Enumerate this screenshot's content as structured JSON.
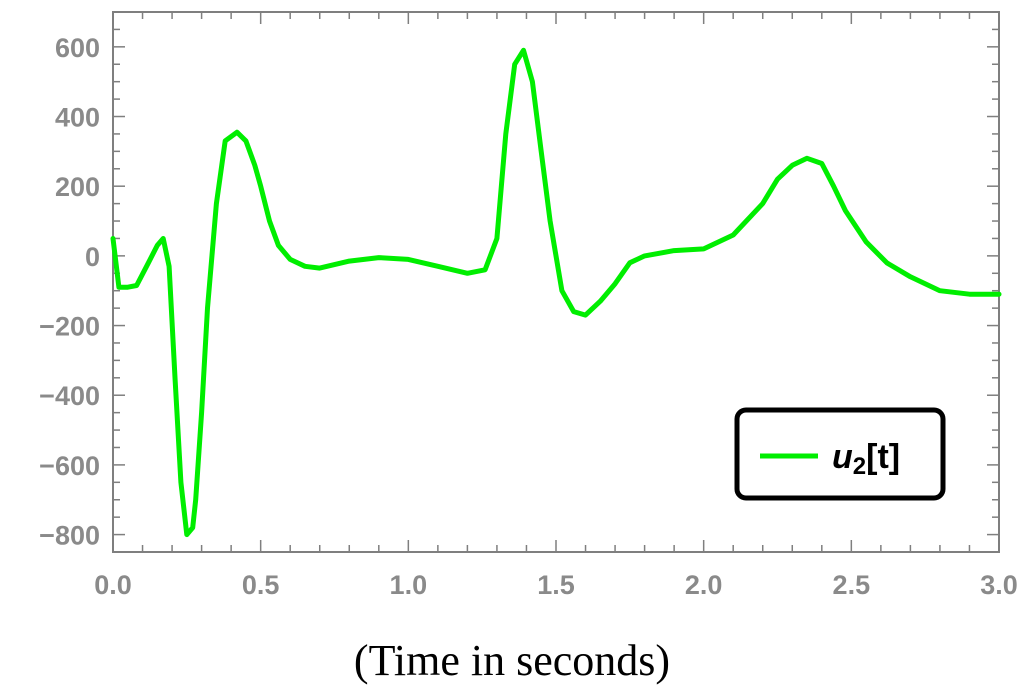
{
  "chart_data": {
    "type": "line",
    "title": "",
    "xlabel": "(Time in seconds)",
    "ylabel": "",
    "xlim": [
      0,
      3
    ],
    "ylim": [
      -850,
      700
    ],
    "x_ticks": [
      0,
      0.5,
      1,
      1.5,
      2,
      2.5,
      3
    ],
    "x_tick_labels": [
      "0.0",
      "0.5",
      "1.0",
      "1.5",
      "2.0",
      "2.5",
      "3.0"
    ],
    "y_ticks": [
      600,
      400,
      200,
      0,
      -200,
      -400,
      -600,
      -800
    ],
    "y_tick_labels": [
      "600",
      "400",
      "200",
      "0",
      "−200",
      "−400",
      "−600",
      "−800"
    ],
    "grid": false,
    "legend_position": "bottom-right",
    "series": [
      {
        "name": "u2[t]",
        "legend_base": "u",
        "legend_sub": "2",
        "legend_suffix": "[t]",
        "color": "#00ee00",
        "x": [
          0,
          0.02,
          0.05,
          0.08,
          0.12,
          0.15,
          0.17,
          0.19,
          0.21,
          0.23,
          0.25,
          0.27,
          0.28,
          0.3,
          0.32,
          0.35,
          0.38,
          0.42,
          0.45,
          0.48,
          0.5,
          0.53,
          0.56,
          0.6,
          0.65,
          0.7,
          0.75,
          0.8,
          0.9,
          1.0,
          1.1,
          1.2,
          1.26,
          1.3,
          1.33,
          1.36,
          1.39,
          1.42,
          1.45,
          1.48,
          1.52,
          1.56,
          1.6,
          1.65,
          1.7,
          1.75,
          1.8,
          1.9,
          2.0,
          2.1,
          2.2,
          2.25,
          2.3,
          2.35,
          2.4,
          2.44,
          2.48,
          2.55,
          2.62,
          2.7,
          2.8,
          2.9,
          3.0
        ],
        "values": [
          50,
          -90,
          -90,
          -85,
          -20,
          30,
          50,
          -30,
          -350,
          -650,
          -800,
          -780,
          -700,
          -450,
          -150,
          150,
          330,
          355,
          330,
          260,
          200,
          100,
          30,
          -10,
          -30,
          -35,
          -25,
          -15,
          -5,
          -10,
          -30,
          -50,
          -40,
          50,
          350,
          550,
          590,
          500,
          300,
          100,
          -100,
          -160,
          -170,
          -130,
          -80,
          -20,
          0,
          15,
          20,
          60,
          150,
          220,
          260,
          280,
          265,
          200,
          130,
          40,
          -20,
          -60,
          -100,
          -110,
          -110
        ]
      }
    ]
  }
}
